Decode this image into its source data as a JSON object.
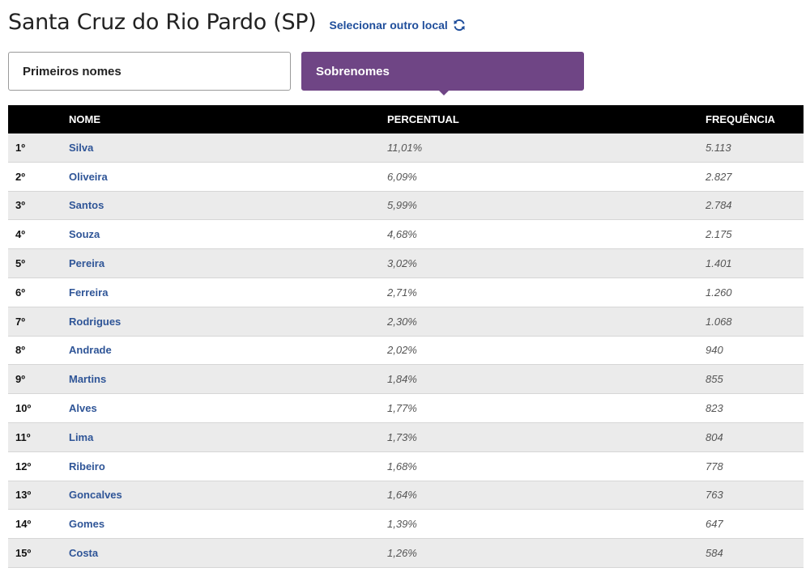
{
  "header": {
    "title": "Santa Cruz do Rio Pardo (SP)",
    "select_link": "Selecionar outro local",
    "refresh_icon": "refresh-icon"
  },
  "tabs": [
    {
      "label": "Primeiros nomes",
      "active": false
    },
    {
      "label": "Sobrenomes",
      "active": true
    }
  ],
  "colors": {
    "accent": "#6f4585",
    "link": "#2f5597",
    "header_bg": "#000000"
  },
  "table": {
    "columns": [
      "",
      "NOME",
      "PERCENTUAL",
      "FREQUÊNCIA"
    ],
    "rows": [
      {
        "rank": "1º",
        "name": "Silva",
        "percent": "11,01%",
        "frequency": "5.113"
      },
      {
        "rank": "2º",
        "name": "Oliveira",
        "percent": "6,09%",
        "frequency": "2.827"
      },
      {
        "rank": "3º",
        "name": "Santos",
        "percent": "5,99%",
        "frequency": "2.784"
      },
      {
        "rank": "4º",
        "name": "Souza",
        "percent": "4,68%",
        "frequency": "2.175"
      },
      {
        "rank": "5º",
        "name": "Pereira",
        "percent": "3,02%",
        "frequency": "1.401"
      },
      {
        "rank": "6º",
        "name": "Ferreira",
        "percent": "2,71%",
        "frequency": "1.260"
      },
      {
        "rank": "7º",
        "name": "Rodrigues",
        "percent": "2,30%",
        "frequency": "1.068"
      },
      {
        "rank": "8º",
        "name": "Andrade",
        "percent": "2,02%",
        "frequency": "940"
      },
      {
        "rank": "9º",
        "name": "Martins",
        "percent": "1,84%",
        "frequency": "855"
      },
      {
        "rank": "10º",
        "name": "Alves",
        "percent": "1,77%",
        "frequency": "823"
      },
      {
        "rank": "11º",
        "name": "Lima",
        "percent": "1,73%",
        "frequency": "804"
      },
      {
        "rank": "12º",
        "name": "Ribeiro",
        "percent": "1,68%",
        "frequency": "778"
      },
      {
        "rank": "13º",
        "name": "Goncalves",
        "percent": "1,64%",
        "frequency": "763"
      },
      {
        "rank": "14º",
        "name": "Gomes",
        "percent": "1,39%",
        "frequency": "647"
      },
      {
        "rank": "15º",
        "name": "Costa",
        "percent": "1,26%",
        "frequency": "584"
      }
    ]
  }
}
